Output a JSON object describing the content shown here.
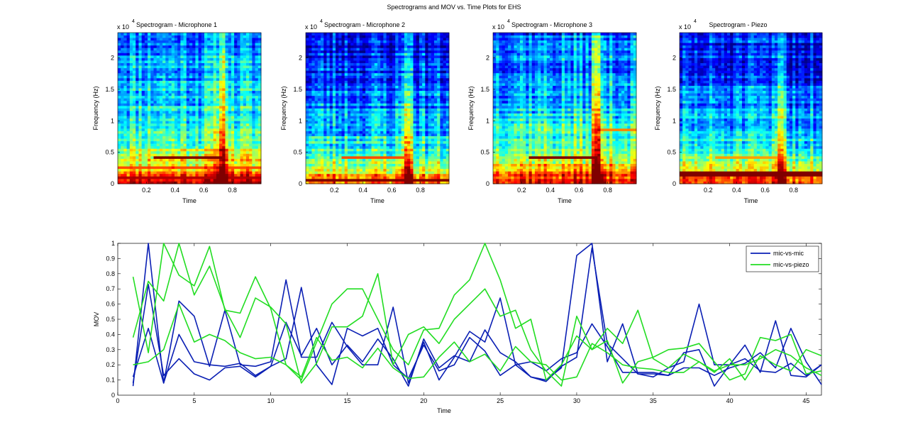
{
  "figure_title": "Spectrograms and MOV vs. Time Plots for EHS",
  "colors": {
    "mic_vs_mic": "#0a1fb4",
    "mic_vs_piezo": "#22dd22",
    "axis": "#000000",
    "background": "#ffffff"
  },
  "chart_data": [
    {
      "type": "heatmap",
      "title": "Spectrogram - Microphone 1",
      "xlabel": "Time",
      "ylabel": "Frequency (Hz)",
      "y_exponent_label": "x 10",
      "y_exponent_power": "4",
      "xlim": [
        0,
        1
      ],
      "ylim": [
        0,
        24000
      ],
      "xticks": [
        0.2,
        0.4,
        0.6,
        0.8
      ],
      "xtick_labels": [
        "0.2",
        "0.4",
        "0.6",
        "0.8"
      ],
      "yticks": [
        0,
        5000,
        10000,
        15000,
        20000
      ],
      "ytick_labels": [
        "0",
        "0.5",
        "1",
        "1.5",
        "2"
      ],
      "colormap": "jet",
      "seed": 11,
      "base_level": 0.42,
      "hot_times": [
        0.71,
        0.75
      ],
      "hot_strength": 0.35,
      "lines": [
        {
          "freq": 4200,
          "t_start": 0.26,
          "t_end": 0.72,
          "level": 1.0
        },
        {
          "freq": 900,
          "t_start": 0.0,
          "t_end": 1.0,
          "level": 0.95
        },
        {
          "freq": 2500,
          "t_start": 0.0,
          "t_end": 1.0,
          "level": 0.8
        }
      ]
    },
    {
      "type": "heatmap",
      "title": "Spectrogram - Microphone 2",
      "xlabel": "Time",
      "ylabel": "Frequency (Hz)",
      "y_exponent_label": "x 10",
      "y_exponent_power": "4",
      "xlim": [
        0,
        1
      ],
      "ylim": [
        0,
        24000
      ],
      "xticks": [
        0.2,
        0.4,
        0.6,
        0.8
      ],
      "xtick_labels": [
        "0.2",
        "0.4",
        "0.6",
        "0.8"
      ],
      "yticks": [
        0,
        5000,
        10000,
        15000,
        20000
      ],
      "ytick_labels": [
        "0",
        "0.5",
        "1",
        "1.5",
        "2"
      ],
      "colormap": "jet",
      "seed": 23,
      "base_level": 0.3,
      "hot_times": [
        0.7,
        0.72
      ],
      "hot_strength": 0.3,
      "lines": [
        {
          "freq": 4200,
          "t_start": 0.26,
          "t_end": 0.7,
          "level": 0.8
        },
        {
          "freq": 500,
          "t_start": 0.0,
          "t_end": 1.0,
          "level": 1.0
        }
      ]
    },
    {
      "type": "heatmap",
      "title": "Spectrogram - Microphone 3",
      "xlabel": "Time",
      "ylabel": "Frequency (Hz)",
      "y_exponent_label": "x 10",
      "y_exponent_power": "4",
      "xlim": [
        0,
        1
      ],
      "ylim": [
        0,
        24000
      ],
      "xticks": [
        0.2,
        0.4,
        0.6,
        0.8
      ],
      "xtick_labels": [
        "0.2",
        "0.4",
        "0.6",
        "0.8"
      ],
      "yticks": [
        0,
        5000,
        10000,
        15000,
        20000
      ],
      "ytick_labels": [
        "0",
        "0.5",
        "1",
        "1.5",
        "2"
      ],
      "colormap": "jet",
      "seed": 37,
      "base_level": 0.4,
      "hot_times": [
        0.71,
        0.74
      ],
      "hot_strength": 0.33,
      "lines": [
        {
          "freq": 4200,
          "t_start": 0.26,
          "t_end": 0.72,
          "level": 1.0
        },
        {
          "freq": 8500,
          "t_start": 0.74,
          "t_end": 1.0,
          "level": 0.75
        }
      ]
    },
    {
      "type": "heatmap",
      "title": "Spectrogram - Piezo",
      "xlabel": "Time",
      "ylabel": "Frequency (Hz)",
      "y_exponent_label": "x 10",
      "y_exponent_power": "4",
      "xlim": [
        0,
        1
      ],
      "ylim": [
        0,
        24000
      ],
      "xticks": [
        0.2,
        0.4,
        0.6,
        0.8
      ],
      "xtick_labels": [
        "0.2",
        "0.4",
        "0.6",
        "0.8"
      ],
      "yticks": [
        0,
        5000,
        10000,
        15000,
        20000
      ],
      "ytick_labels": [
        "0",
        "0.5",
        "1",
        "1.5",
        "2"
      ],
      "colormap": "jet",
      "seed": 51,
      "base_level": 0.3,
      "hot_times": [
        0.7,
        0.72
      ],
      "hot_strength": 0.28,
      "lines": [
        {
          "freq": 1600,
          "t_start": 0.0,
          "t_end": 1.0,
          "level": 1.0
        },
        {
          "freq": 4300,
          "t_start": 0.26,
          "t_end": 0.72,
          "level": 0.72
        }
      ]
    },
    {
      "type": "line",
      "title": "",
      "xlabel": "Time",
      "ylabel": "MOV",
      "xlim": [
        0,
        46
      ],
      "ylim": [
        0,
        1
      ],
      "xticks": [
        0,
        5,
        10,
        15,
        20,
        25,
        30,
        35,
        40,
        45
      ],
      "xtick_labels": [
        "0",
        "5",
        "10",
        "15",
        "20",
        "25",
        "30",
        "35",
        "40",
        "45"
      ],
      "yticks": [
        0.1,
        0.2,
        0.3,
        0.4,
        0.5,
        0.6,
        0.7,
        0.8,
        0.9,
        1
      ],
      "ytick_labels": [
        "0.1",
        "0.2",
        "0.3",
        "0.4",
        "0.5",
        "0.6",
        "0.7",
        "0.8",
        "0.9",
        "1"
      ],
      "legend": {
        "position": "top-right",
        "entries": [
          {
            "label": "mic-vs-mic",
            "color_key": "mic_vs_mic"
          },
          {
            "label": "mic-vs-piezo",
            "color_key": "mic_vs_piezo"
          }
        ]
      },
      "x": [
        1,
        2,
        3,
        4,
        5,
        6,
        7,
        8,
        9,
        10,
        11,
        12,
        13,
        14,
        15,
        16,
        17,
        18,
        19,
        20,
        21,
        22,
        23,
        24,
        25,
        26,
        27,
        28,
        29,
        30,
        31,
        32,
        33,
        34,
        35,
        36,
        37,
        38,
        39,
        40,
        41,
        42,
        43,
        44,
        45,
        46
      ],
      "series": [
        {
          "name": "mic-vs-mic",
          "color_key": "mic_vs_mic",
          "values": [
            0.06,
            1.0,
            0.08,
            0.62,
            0.52,
            0.19,
            0.56,
            0.2,
            0.19,
            0.22,
            0.76,
            0.25,
            0.25,
            0.48,
            0.32,
            0.2,
            0.2,
            0.58,
            0.08,
            0.35,
            0.1,
            0.25,
            0.42,
            0.35,
            0.64,
            0.2,
            0.12,
            0.1,
            0.18,
            0.92,
            1.0,
            0.22,
            0.47,
            0.14,
            0.12,
            0.18,
            0.22,
            0.6,
            0.2,
            0.2,
            0.33,
            0.15,
            0.49,
            0.13,
            0.12,
            0.2
          ]
        },
        {
          "name": "mic-vs-mic",
          "color_key": "mic_vs_mic",
          "values": [
            0.12,
            0.44,
            0.08,
            0.4,
            0.22,
            0.2,
            0.19,
            0.21,
            0.13,
            0.19,
            0.24,
            0.71,
            0.2,
            0.07,
            0.44,
            0.39,
            0.44,
            0.2,
            0.11,
            0.33,
            0.16,
            0.2,
            0.38,
            0.29,
            0.13,
            0.2,
            0.22,
            0.16,
            0.24,
            0.28,
            0.47,
            0.32,
            0.15,
            0.15,
            0.15,
            0.13,
            0.18,
            0.18,
            0.13,
            0.18,
            0.21,
            0.28,
            0.18,
            0.44,
            0.22,
            0.07
          ]
        },
        {
          "name": "mic-vs-mic",
          "color_key": "mic_vs_mic",
          "values": [
            0.08,
            0.73,
            0.13,
            0.24,
            0.14,
            0.1,
            0.18,
            0.19,
            0.12,
            0.19,
            0.48,
            0.26,
            0.44,
            0.2,
            0.33,
            0.22,
            0.37,
            0.24,
            0.06,
            0.37,
            0.18,
            0.26,
            0.22,
            0.43,
            0.28,
            0.22,
            0.12,
            0.09,
            0.19,
            0.25,
            0.97,
            0.34,
            0.24,
            0.14,
            0.14,
            0.13,
            0.28,
            0.3,
            0.06,
            0.2,
            0.24,
            0.16,
            0.15,
            0.21,
            0.13,
            0.2
          ]
        },
        {
          "name": "mic-vs-piezo",
          "color_key": "mic_vs_piezo",
          "values": [
            0.78,
            0.28,
            1.0,
            0.79,
            0.72,
            0.98,
            0.56,
            0.54,
            0.78,
            0.57,
            0.2,
            0.1,
            0.35,
            0.6,
            0.7,
            0.7,
            0.5,
            0.3,
            0.2,
            0.43,
            0.44,
            0.66,
            0.76,
            1.0,
            0.76,
            0.44,
            0.5,
            0.1,
            0.2,
            0.39,
            0.3,
            0.44,
            0.34,
            0.56,
            0.24,
            0.18,
            0.27,
            0.22,
            0.15,
            0.24,
            0.1,
            0.26,
            0.2,
            0.16,
            0.3,
            0.26
          ]
        },
        {
          "name": "mic-vs-piezo",
          "color_key": "mic_vs_piezo",
          "values": [
            0.38,
            0.75,
            0.62,
            1.0,
            0.66,
            0.85,
            0.57,
            0.38,
            0.64,
            0.58,
            0.47,
            0.08,
            0.21,
            0.45,
            0.45,
            0.52,
            0.8,
            0.2,
            0.4,
            0.45,
            0.34,
            0.5,
            0.6,
            0.7,
            0.52,
            0.56,
            0.3,
            0.16,
            0.06,
            0.52,
            0.3,
            0.36,
            0.08,
            0.22,
            0.25,
            0.3,
            0.31,
            0.34,
            0.22,
            0.1,
            0.14,
            0.38,
            0.36,
            0.4,
            0.14,
            0.16
          ]
        },
        {
          "name": "mic-vs-piezo",
          "color_key": "mic_vs_piezo",
          "values": [
            0.2,
            0.22,
            0.3,
            0.6,
            0.35,
            0.4,
            0.36,
            0.28,
            0.24,
            0.25,
            0.2,
            0.12,
            0.38,
            0.23,
            0.25,
            0.18,
            0.31,
            0.18,
            0.11,
            0.12,
            0.25,
            0.35,
            0.22,
            0.27,
            0.16,
            0.32,
            0.22,
            0.2,
            0.1,
            0.12,
            0.34,
            0.28,
            0.2,
            0.18,
            0.17,
            0.15,
            0.15,
            0.22,
            0.16,
            0.2,
            0.2,
            0.24,
            0.3,
            0.26,
            0.18,
            0.13
          ]
        }
      ]
    }
  ]
}
